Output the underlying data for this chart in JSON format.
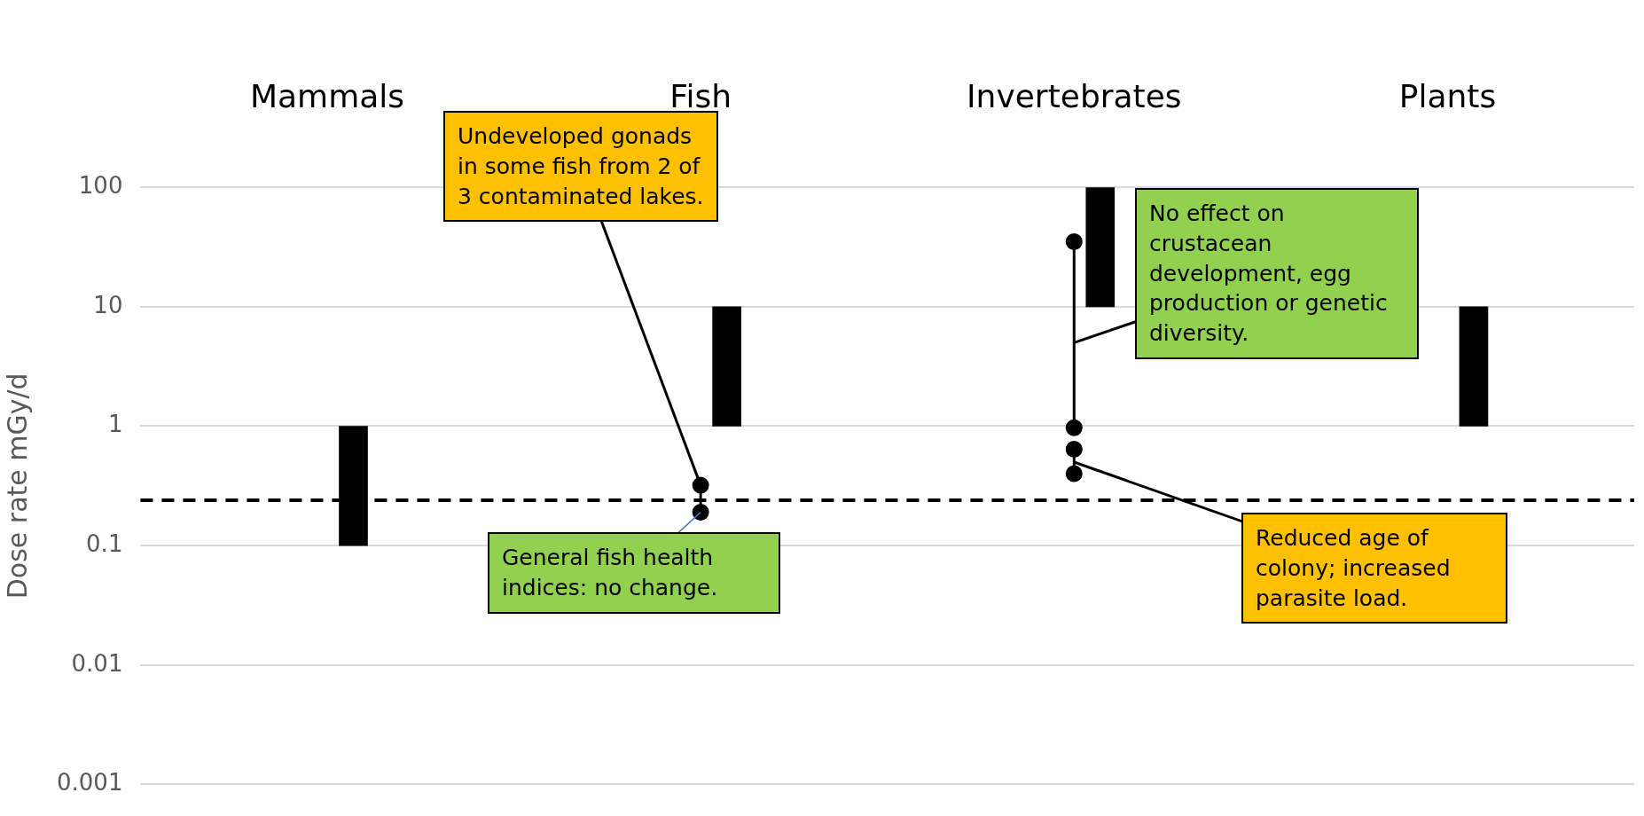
{
  "chart_data": {
    "type": "bar",
    "categories": [
      "Mammals",
      "Fish",
      "Invertebrates",
      "Plants"
    ],
    "ylabel": "Dose rate mGy/d",
    "log": "y",
    "ylim": [
      0.001,
      100
    ],
    "yticks": [
      0.001,
      0.01,
      0.1,
      1,
      10,
      100
    ],
    "grid": "y",
    "legend": false,
    "series": [
      {
        "color": "#000000",
        "base": [
          0.1,
          1,
          10,
          1
        ],
        "values": [
          0.9,
          9,
          90,
          9
        ]
      },
      {
        "type": "line",
        "color": "#000000",
        "marker": "circle",
        "x": [
          "Fish",
          "Fish"
        ],
        "values": [
          0.19,
          0.32
        ]
      },
      {
        "type": "line",
        "color": "#000000",
        "marker": "circle",
        "x": [
          "Invertebrates",
          "Invertebrates"
        ],
        "values": [
          0.97,
          35
        ]
      },
      {
        "type": "line",
        "color": "#000000",
        "marker": "circle",
        "x": [
          "Invertebrates",
          "Invertebrates"
        ],
        "values": [
          0.4,
          0.64
        ]
      }
    ],
    "ref_lines": [
      {
        "axis": "y",
        "value": 0.24,
        "color": "#000000",
        "line_style": "dashed"
      }
    ],
    "annotations": [
      {
        "text": "Undeveloped gonads in some fish from 2 of 3 contaminated lakes.",
        "x": "Fish",
        "y": 0.32
      },
      {
        "text": "General fish health indices: no change.",
        "x": "Fish",
        "y": 0.19
      },
      {
        "text": "No effect on crustacean development, egg production or genetic diversity.",
        "x": "Invertebrates",
        "y": 5
      },
      {
        "text": "Reduced age of colony; increased parasite load.",
        "x": "Invertebrates",
        "y": 0.5
      }
    ]
  }
}
